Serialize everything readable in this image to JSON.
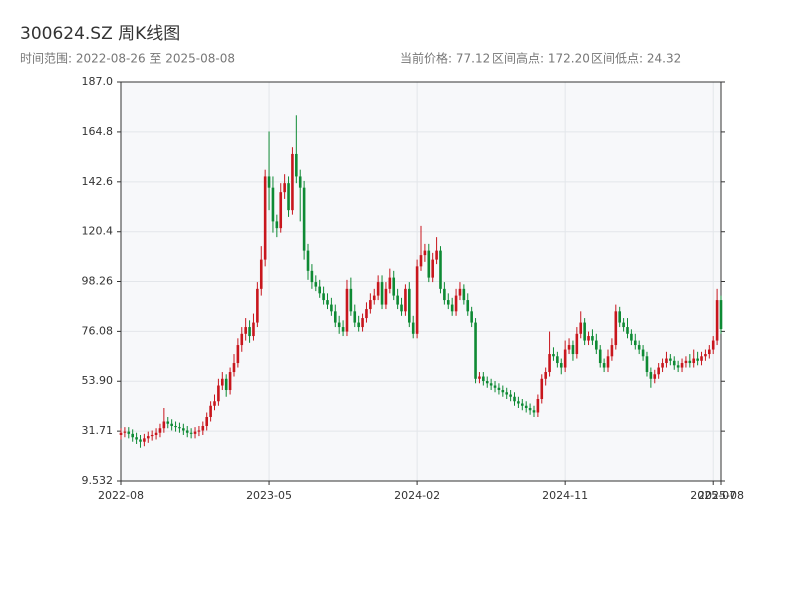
{
  "chart_data": {
    "type": "candlestick",
    "title": "300624.SZ 周K线图",
    "subtitle": "时间范围: 2022-08-26 至 2025-08-08",
    "stats": [
      "当前价格: 77.12",
      "区间高点: 172.20",
      "区间低点: 24.32"
    ],
    "up_color": "#c8161d",
    "down_color": "#0e8a34",
    "grid": true,
    "xlim": [
      0,
      154
    ],
    "xticks": [
      {
        "value": 0,
        "label": "2022-08"
      },
      {
        "value": 38,
        "label": "2023-05"
      },
      {
        "value": 76,
        "label": "2024-02"
      },
      {
        "value": 114,
        "label": "2024-11"
      },
      {
        "value": 152,
        "label": "2025-07"
      },
      {
        "value": 154,
        "label": "2025-08"
      }
    ],
    "ylim": [
      9.532,
      187
    ],
    "yticks": [
      9.532,
      31.71,
      {
        "value": 53.9,
        "label": "53.90"
      },
      76.08,
      98.26,
      120.4,
      142.6,
      164.8,
      {
        "value": 187,
        "label": "187.0"
      }
    ],
    "open": [
      30,
      31,
      31.5,
      30.5,
      29,
      28,
      27,
      28.5,
      29.5,
      30,
      31,
      33,
      36,
      35,
      34,
      33.5,
      33,
      32,
      31,
      30.5,
      31.5,
      32,
      34,
      38,
      43,
      45,
      52,
      55,
      50,
      58,
      62,
      70,
      75,
      78,
      74,
      80,
      95,
      108,
      145,
      140,
      125,
      122,
      138,
      142,
      130,
      155,
      145,
      140,
      112,
      103,
      98,
      96,
      93,
      90,
      88,
      85,
      80,
      78,
      76,
      95,
      85,
      80,
      78,
      82,
      86,
      90,
      92,
      98,
      88,
      95,
      100,
      92,
      88,
      85,
      95,
      80,
      75,
      105,
      110,
      112,
      100,
      108,
      112,
      95,
      90,
      88,
      85,
      92,
      95,
      90,
      85,
      80,
      55,
      56,
      54,
      53,
      52,
      51,
      50,
      49,
      48,
      47,
      45,
      44,
      43,
      42,
      41,
      40,
      46,
      55,
      58,
      66,
      65,
      62,
      60,
      68,
      70,
      66,
      75,
      80,
      72,
      74,
      72,
      68,
      62,
      60,
      65,
      70,
      85,
      80,
      78,
      75,
      72,
      70,
      68,
      65,
      58,
      55,
      57,
      60,
      62,
      64,
      63,
      61,
      60,
      62,
      63,
      62,
      64,
      63,
      65,
      66,
      68,
      72,
      90
    ],
    "high": [
      33,
      33.5,
      33.5,
      32.5,
      31,
      30,
      30.5,
      31.5,
      32,
      33,
      35,
      42,
      38,
      37,
      36,
      35.5,
      35,
      34,
      33,
      33.5,
      34,
      36,
      40,
      45,
      48,
      55,
      58,
      57,
      60,
      66,
      73,
      78,
      82,
      81,
      84,
      98,
      114,
      148,
      165,
      145,
      128,
      142,
      146,
      145,
      158,
      172.2,
      148,
      143,
      115,
      106,
      101,
      99,
      96,
      93,
      91,
      88,
      83,
      81,
      99,
      100,
      88,
      83,
      84,
      89,
      93,
      95,
      101,
      101,
      98,
      104,
      103,
      95,
      91,
      97,
      98,
      83,
      108,
      123,
      115,
      115,
      111,
      118,
      114,
      98,
      93,
      91,
      95,
      98,
      97,
      93,
      87,
      82,
      58,
      58,
      56,
      55,
      54,
      53,
      52,
      51,
      50,
      49,
      47,
      46,
      45,
      44,
      43,
      48,
      57,
      60,
      76,
      69,
      67,
      64,
      72,
      73,
      72,
      78,
      85,
      82,
      76,
      77,
      75,
      70,
      64,
      68,
      73,
      88,
      87,
      82,
      82,
      77,
      75,
      72,
      70,
      67,
      60,
      59,
      62,
      64,
      67,
      66,
      65,
      63,
      64,
      65,
      66,
      68,
      67,
      67,
      68,
      70,
      74,
      95,
      92
    ],
    "low": [
      28,
      29,
      28.5,
      27,
      26,
      24.32,
      25,
      26.5,
      27.5,
      28,
      29,
      31,
      33,
      32,
      31.5,
      31,
      30,
      29,
      28.5,
      28.5,
      29.5,
      30,
      32,
      36,
      41,
      43,
      50,
      47,
      48,
      56,
      60,
      67,
      72,
      71,
      72,
      78,
      92,
      105,
      130,
      120,
      118,
      120,
      135,
      127,
      128,
      142,
      125,
      108,
      99,
      95,
      94,
      91,
      88,
      86,
      83,
      78,
      75,
      74,
      74,
      83,
      78,
      76,
      76,
      80,
      84,
      88,
      90,
      86,
      86,
      93,
      90,
      86,
      83,
      83,
      78,
      73,
      73,
      103,
      107,
      98,
      98,
      106,
      93,
      88,
      86,
      83,
      83,
      90,
      88,
      83,
      78,
      53,
      53,
      52,
      51,
      50,
      49,
      48,
      47,
      46,
      45,
      43,
      42,
      41,
      40,
      39,
      38,
      38,
      44,
      52,
      56,
      63,
      60,
      57,
      58,
      66,
      63,
      64,
      73,
      70,
      70,
      70,
      66,
      60,
      58,
      58,
      63,
      68,
      78,
      76,
      73,
      70,
      68,
      66,
      63,
      56,
      51,
      53,
      55,
      58,
      60,
      61,
      59,
      58,
      58,
      60,
      60,
      60,
      61,
      61,
      63,
      64,
      66,
      70,
      75
    ],
    "close": [
      31,
      31.5,
      30.5,
      29,
      28,
      27,
      28.5,
      29.5,
      30,
      31,
      33,
      36,
      35,
      34,
      33.5,
      33,
      32,
      31,
      30.5,
      31.5,
      32,
      34,
      38,
      43,
      45,
      52,
      55,
      50,
      58,
      62,
      70,
      75,
      78,
      74,
      80,
      95,
      108,
      145,
      140,
      125,
      122,
      138,
      142,
      130,
      155,
      145,
      140,
      112,
      103,
      98,
      96,
      93,
      90,
      88,
      85,
      80,
      78,
      76,
      95,
      85,
      80,
      78,
      82,
      86,
      90,
      92,
      98,
      88,
      95,
      100,
      92,
      88,
      85,
      95,
      80,
      75,
      105,
      110,
      112,
      100,
      108,
      112,
      95,
      90,
      88,
      85,
      92,
      95,
      90,
      85,
      80,
      55,
      56,
      54,
      53,
      52,
      51,
      50,
      49,
      48,
      47,
      45,
      44,
      43,
      42,
      41,
      40,
      46,
      55,
      58,
      66,
      65,
      62,
      60,
      68,
      70,
      66,
      75,
      80,
      72,
      74,
      72,
      68,
      62,
      60,
      65,
      70,
      85,
      80,
      78,
      75,
      72,
      70,
      68,
      65,
      58,
      55,
      57,
      60,
      62,
      64,
      63,
      61,
      60,
      62,
      63,
      62,
      64,
      63,
      65,
      66,
      68,
      72,
      90,
      77.12
    ]
  }
}
